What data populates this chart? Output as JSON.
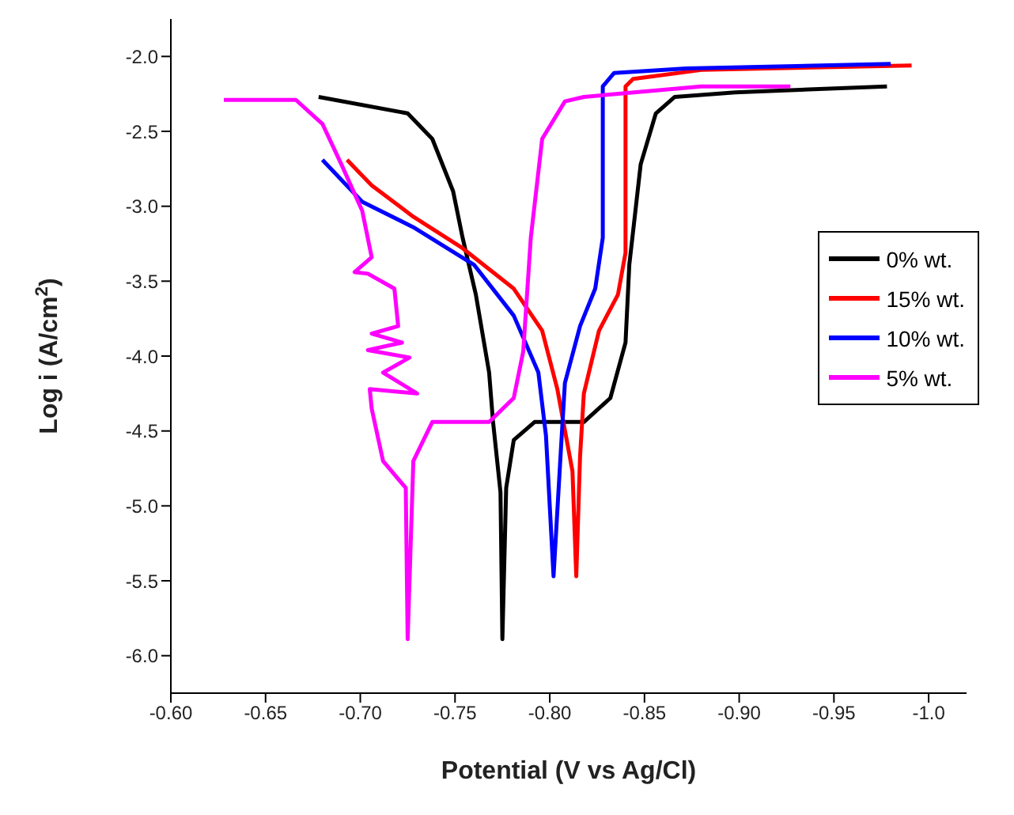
{
  "chart_data": {
    "type": "line",
    "xlabel": "Potential (V vs Ag/Cl)",
    "ylabel": "Log i (A/cm$^{2}$)",
    "xlim": [
      -0.6,
      -1.02
    ],
    "ylim": [
      -6.25,
      -1.75
    ],
    "xticks": [
      {
        "value": -0.6,
        "label": "-0.60"
      },
      -0.65,
      {
        "value": -0.7,
        "label": "-0.70"
      },
      -0.75,
      {
        "value": -0.8,
        "label": "-0.80"
      },
      -0.85,
      {
        "value": -0.9,
        "label": "-0.90"
      },
      -0.95,
      {
        "value": -1.0,
        "label": "-1.0"
      }
    ],
    "yticks": [
      {
        "value": -6,
        "label": "-6.0"
      },
      -5.5,
      {
        "value": -5,
        "label": "-5.0"
      },
      -4.5,
      {
        "value": -4,
        "label": "-4.0"
      },
      -3.5,
      {
        "value": -3,
        "label": "-3.0"
      },
      -2.5,
      {
        "value": -2,
        "label": "-2.0"
      }
    ],
    "grid": false,
    "legend": "right",
    "line_style": "solid",
    "series": [
      {
        "name": "0% wt.",
        "color": "#000000",
        "x": [
          -0.678,
          -0.725,
          -0.738,
          -0.749,
          -0.754,
          -0.761,
          -0.768,
          -0.77,
          -0.774,
          -0.775,
          -0.777,
          -0.781,
          -0.792,
          -0.818,
          -0.832,
          -0.84,
          -0.842,
          -0.848,
          -0.856,
          -0.866,
          -0.898,
          -0.978
        ],
        "values": [
          -2.27,
          -2.38,
          -2.55,
          -2.9,
          -3.21,
          -3.59,
          -4.11,
          -4.43,
          -4.91,
          -5.89,
          -4.88,
          -4.56,
          -4.44,
          -4.44,
          -4.28,
          -3.91,
          -3.39,
          -2.72,
          -2.38,
          -2.27,
          -2.24,
          -2.2
        ]
      },
      {
        "name": "15% wt.",
        "color": "#ff0000",
        "x": [
          -0.693,
          -0.706,
          -0.728,
          -0.754,
          -0.781,
          -0.796,
          -0.804,
          -0.812,
          -0.814,
          -0.816,
          -0.818,
          -0.826,
          -0.836,
          -0.84,
          -0.84,
          -0.844,
          -0.88,
          -0.991
        ],
        "values": [
          -2.69,
          -2.86,
          -3.07,
          -3.28,
          -3.55,
          -3.83,
          -4.22,
          -4.77,
          -5.47,
          -4.67,
          -4.25,
          -3.83,
          -3.59,
          -3.31,
          -2.2,
          -2.15,
          -2.09,
          -2.06
        ]
      },
      {
        "name": "10% wt.",
        "color": "#0000ff",
        "x": [
          -0.68,
          -0.701,
          -0.728,
          -0.76,
          -0.781,
          -0.794,
          -0.798,
          -0.802,
          -0.806,
          -0.808,
          -0.816,
          -0.824,
          -0.828,
          -0.828,
          -0.834,
          -0.872,
          -0.98
        ],
        "values": [
          -2.69,
          -2.97,
          -3.14,
          -3.39,
          -3.73,
          -4.11,
          -4.53,
          -5.47,
          -4.6,
          -4.18,
          -3.8,
          -3.55,
          -3.21,
          -2.2,
          -2.11,
          -2.08,
          -2.05
        ]
      },
      {
        "name": "5% wt.",
        "color": "#ff00ff",
        "x": [
          -0.628,
          -0.666,
          -0.68,
          -0.69,
          -0.701,
          -0.706,
          -0.697,
          -0.704,
          -0.718,
          -0.72,
          -0.706,
          -0.722,
          -0.704,
          -0.726,
          -0.712,
          -0.73,
          -0.705,
          -0.706,
          -0.712,
          -0.724,
          -0.725,
          -0.728,
          -0.738,
          -0.768,
          -0.781,
          -0.786,
          -0.79,
          -0.796,
          -0.808,
          -0.818,
          -0.88,
          -0.927
        ],
        "values": [
          -2.29,
          -2.29,
          -2.45,
          -2.72,
          -3.03,
          -3.34,
          -3.44,
          -3.45,
          -3.55,
          -3.8,
          -3.85,
          -3.91,
          -3.96,
          -4.01,
          -4.11,
          -4.25,
          -4.22,
          -4.35,
          -4.7,
          -4.88,
          -5.89,
          -4.7,
          -4.44,
          -4.44,
          -4.28,
          -3.97,
          -3.21,
          -2.55,
          -2.3,
          -2.27,
          -2.2,
          -2.2
        ]
      }
    ]
  }
}
